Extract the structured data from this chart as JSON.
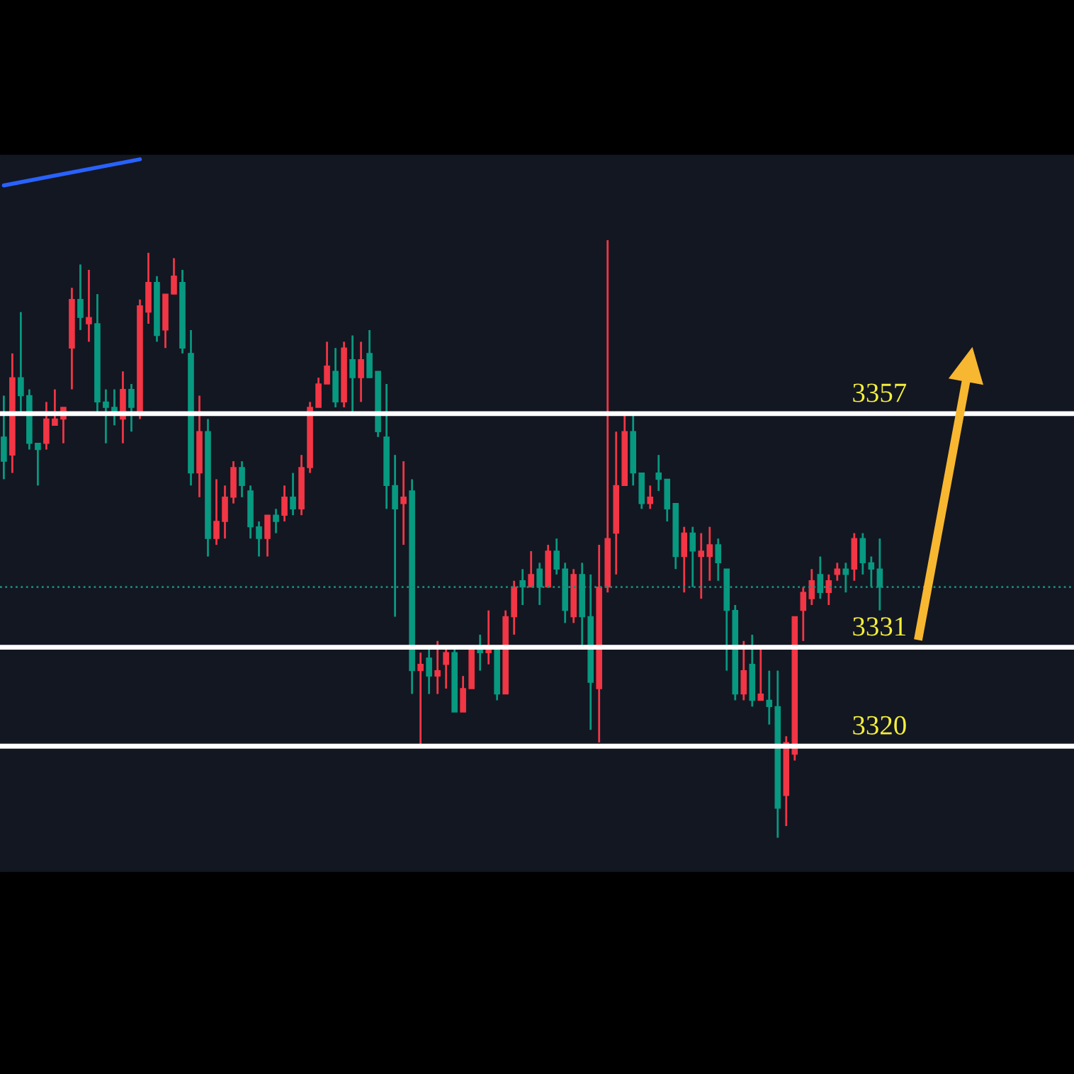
{
  "chart_data": {
    "type": "candlestick",
    "ylim": [
      3306.1,
      3385.7
    ],
    "categories": [
      null,
      null,
      null,
      null,
      null,
      null,
      null,
      null,
      null,
      null,
      null,
      null,
      null,
      null,
      null,
      null,
      null,
      null,
      null,
      null,
      null,
      null,
      null,
      null,
      null,
      null,
      null,
      null,
      null,
      null,
      null,
      null,
      null,
      null,
      null,
      null,
      null,
      null,
      null,
      null,
      null,
      null,
      null,
      null,
      null,
      null,
      null,
      null,
      null,
      null,
      null,
      null,
      null,
      null,
      null,
      null,
      null,
      null,
      null,
      null,
      null,
      null,
      null,
      null,
      null,
      null,
      null,
      null,
      null,
      null,
      null,
      null,
      null,
      null,
      null,
      null,
      null,
      null,
      null,
      null,
      null,
      null,
      null,
      null,
      null,
      null,
      null,
      null,
      null,
      null,
      null,
      null,
      null,
      null,
      null,
      null,
      null,
      null,
      null,
      null,
      null,
      null,
      null,
      null
    ],
    "ohlc": [
      [
        3354.4,
        3359.0,
        3349.7,
        3351.7
      ],
      [
        3352.4,
        3363.7,
        3350.4,
        3361.0
      ],
      [
        3361.0,
        3368.3,
        3357.0,
        3359.0
      ],
      [
        3359.0,
        3359.7,
        3353.0,
        3353.7
      ],
      [
        3353.7,
        3353.7,
        3349.0,
        3353.0
      ],
      [
        3353.7,
        3358.3,
        3353.0,
        3356.4
      ],
      [
        3355.7,
        3359.7,
        3355.7,
        3356.4
      ],
      [
        3356.4,
        3357.7,
        3353.7,
        3357.7
      ],
      [
        3364.3,
        3371.0,
        3359.7,
        3369.7
      ],
      [
        3369.7,
        3373.6,
        3366.3,
        3367.7
      ],
      [
        3367.0,
        3373.0,
        3365.0,
        3367.7
      ],
      [
        3367.0,
        3370.3,
        3357.0,
        3358.3
      ],
      [
        3358.3,
        3359.7,
        3353.7,
        3357.7
      ],
      [
        3357.7,
        3359.7,
        3355.7,
        3357.0
      ],
      [
        3356.4,
        3361.7,
        3353.7,
        3359.7
      ],
      [
        3359.7,
        3360.3,
        3355.0,
        3357.7
      ],
      [
        3357.0,
        3369.7,
        3356.4,
        3369.0
      ],
      [
        3368.3,
        3374.9,
        3367.0,
        3371.6
      ],
      [
        3371.6,
        3372.3,
        3365.0,
        3365.7
      ],
      [
        3366.3,
        3370.3,
        3364.3,
        3370.3
      ],
      [
        3370.3,
        3374.3,
        3370.3,
        3372.3
      ],
      [
        3371.6,
        3373.0,
        3363.7,
        3364.3
      ],
      [
        3363.7,
        3366.3,
        3349.0,
        3350.4
      ],
      [
        3350.4,
        3359.0,
        3347.7,
        3355.0
      ],
      [
        3355.0,
        3356.4,
        3341.1,
        3343.1
      ],
      [
        3343.1,
        3349.7,
        3342.4,
        3345.0
      ],
      [
        3345.0,
        3349.0,
        3343.1,
        3347.7
      ],
      [
        3347.7,
        3351.7,
        3347.0,
        3351.0
      ],
      [
        3351.0,
        3351.7,
        3347.7,
        3349.0
      ],
      [
        3348.4,
        3349.0,
        3343.1,
        3344.4
      ],
      [
        3344.4,
        3345.0,
        3341.1,
        3343.1
      ],
      [
        3343.1,
        3345.7,
        3341.1,
        3345.7
      ],
      [
        3345.7,
        3346.4,
        3343.7,
        3345.0
      ],
      [
        3345.7,
        3349.0,
        3345.0,
        3347.7
      ],
      [
        3347.7,
        3350.4,
        3345.7,
        3346.4
      ],
      [
        3346.4,
        3352.4,
        3345.7,
        3351.0
      ],
      [
        3351.0,
        3358.3,
        3350.4,
        3357.7
      ],
      [
        3357.7,
        3361.0,
        3357.7,
        3360.3
      ],
      [
        3360.3,
        3365.0,
        3360.3,
        3362.3
      ],
      [
        3361.7,
        3364.3,
        3357.7,
        3358.3
      ],
      [
        3358.3,
        3365.0,
        3357.7,
        3364.3
      ],
      [
        3363.0,
        3365.7,
        3357.0,
        3361.0
      ],
      [
        3361.0,
        3365.0,
        3358.3,
        3363.0
      ],
      [
        3363.7,
        3366.3,
        3361.0,
        3361.0
      ],
      [
        3361.7,
        3361.7,
        3354.4,
        3355.0
      ],
      [
        3354.4,
        3360.3,
        3346.4,
        3349.0
      ],
      [
        3349.0,
        3352.4,
        3334.4,
        3346.4
      ],
      [
        3347.0,
        3351.7,
        3342.4,
        3347.7
      ],
      [
        3348.4,
        3349.7,
        3325.8,
        3328.4
      ],
      [
        3328.4,
        3330.4,
        3319.8,
        3329.1
      ],
      [
        3329.8,
        3331.1,
        3325.8,
        3327.8
      ],
      [
        3327.8,
        3331.7,
        3325.8,
        3328.4
      ],
      [
        3329.1,
        3331.1,
        3326.4,
        3330.4
      ],
      [
        3330.4,
        3331.1,
        3323.8,
        3323.8
      ],
      [
        3323.8,
        3327.8,
        3323.8,
        3326.4
      ],
      [
        3326.4,
        3331.1,
        3326.4,
        3331.1
      ],
      [
        3331.1,
        3332.4,
        3328.4,
        3330.4
      ],
      [
        3330.4,
        3335.1,
        3329.1,
        3331.1
      ],
      [
        3331.1,
        3331.1,
        3325.1,
        3325.8
      ],
      [
        3325.8,
        3335.1,
        3325.8,
        3334.4
      ],
      [
        3334.4,
        3338.4,
        3332.4,
        3337.7
      ],
      [
        3338.4,
        3339.7,
        3335.7,
        3337.7
      ],
      [
        3337.7,
        3341.7,
        3337.7,
        3339.1
      ],
      [
        3339.7,
        3340.4,
        3335.7,
        3337.7
      ],
      [
        3337.7,
        3342.4,
        3337.7,
        3341.7
      ],
      [
        3341.7,
        3343.1,
        3339.1,
        3339.7
      ],
      [
        3339.7,
        3340.4,
        3333.7,
        3335.1
      ],
      [
        3334.4,
        3339.7,
        3333.7,
        3339.1
      ],
      [
        3339.1,
        3340.4,
        3331.1,
        3334.4
      ],
      [
        3334.4,
        3339.1,
        3321.8,
        3327.1
      ],
      [
        3326.4,
        3342.4,
        3320.4,
        3337.7
      ],
      [
        3337.7,
        3376.3,
        3337.1,
        3343.1
      ],
      [
        3343.7,
        3355.0,
        3339.1,
        3349.0
      ],
      [
        3349.0,
        3357.0,
        3349.0,
        3355.0
      ],
      [
        3355.0,
        3357.0,
        3349.0,
        3350.4
      ],
      [
        3350.4,
        3350.4,
        3346.4,
        3347.0
      ],
      [
        3347.0,
        3349.0,
        3346.4,
        3347.7
      ],
      [
        3350.4,
        3352.4,
        3348.4,
        3349.7
      ],
      [
        3349.7,
        3349.7,
        3345.0,
        3346.4
      ],
      [
        3347.0,
        3347.0,
        3339.7,
        3341.1
      ],
      [
        3341.1,
        3344.4,
        3337.1,
        3343.7
      ],
      [
        3343.7,
        3344.4,
        3337.7,
        3341.7
      ],
      [
        3341.1,
        3343.7,
        3336.4,
        3341.7
      ],
      [
        3341.1,
        3344.4,
        3338.4,
        3342.4
      ],
      [
        3342.4,
        3343.1,
        3338.4,
        3340.4
      ],
      [
        3339.7,
        3339.7,
        3328.4,
        3335.1
      ],
      [
        3335.1,
        3335.7,
        3325.1,
        3325.8
      ],
      [
        3325.8,
        3331.7,
        3325.1,
        3328.4
      ],
      [
        3329.1,
        3332.4,
        3324.4,
        3325.1
      ],
      [
        3325.1,
        3331.1,
        3325.1,
        3325.8
      ],
      [
        3325.1,
        3328.4,
        3322.4,
        3324.4
      ],
      [
        3324.4,
        3328.4,
        3309.8,
        3313.1
      ],
      [
        3314.5,
        3321.1,
        3311.1,
        3320.4
      ],
      [
        3319.1,
        3334.4,
        3318.4,
        3334.4
      ],
      [
        3335.1,
        3337.7,
        3331.7,
        3337.1
      ],
      [
        3336.4,
        3339.7,
        3335.7,
        3338.4
      ],
      [
        3339.1,
        3341.1,
        3336.4,
        3337.1
      ],
      [
        3337.1,
        3339.1,
        3335.7,
        3338.4
      ],
      [
        3339.1,
        3340.4,
        3338.4,
        3339.7
      ],
      [
        3339.7,
        3340.4,
        3337.1,
        3339.1
      ],
      [
        3339.7,
        3343.7,
        3338.4,
        3343.1
      ],
      [
        3343.1,
        3343.7,
        3339.1,
        3340.4
      ],
      [
        3340.4,
        3341.1,
        3337.7,
        3339.7
      ],
      [
        3339.7,
        3343.1,
        3335.1,
        3337.7
      ]
    ],
    "series": [
      {
        "type": "line",
        "color": "#2962ff",
        "values": [
          3382.4,
          null,
          null,
          null,
          null,
          null,
          null,
          null,
          null,
          null,
          null,
          null,
          null,
          null,
          null,
          null,
          3385.3,
          null,
          null,
          null,
          null,
          null,
          null,
          null,
          null,
          null,
          null,
          null,
          null,
          null,
          null,
          null,
          null,
          null,
          null,
          null,
          null,
          null,
          null,
          null,
          null,
          null,
          null,
          null,
          null,
          null,
          null,
          null,
          null,
          null,
          null,
          null,
          null,
          null,
          null,
          null,
          null,
          null,
          null,
          null,
          null,
          null,
          null,
          null,
          null,
          null,
          null,
          null,
          null,
          null,
          null,
          null,
          null,
          null,
          null,
          null,
          null,
          null,
          null,
          null,
          null,
          null,
          null,
          null,
          null,
          null,
          null,
          null,
          null,
          null,
          null,
          null,
          null,
          null,
          null,
          null,
          null,
          null,
          null,
          null,
          null,
          null,
          null,
          null
        ]
      }
    ],
    "ref_lines": [
      {
        "axis": "y",
        "value": 3357,
        "label": "3357",
        "color": "#ffffff"
      },
      {
        "axis": "y",
        "value": 3331,
        "label": "3331",
        "color": "#ffffff"
      },
      {
        "axis": "y",
        "value": 3320,
        "label": "3320",
        "color": "#ffffff"
      },
      {
        "axis": "y",
        "value": 3337.7,
        "color": "#1a8a7a",
        "line_style": "dotted"
      }
    ]
  }
}
